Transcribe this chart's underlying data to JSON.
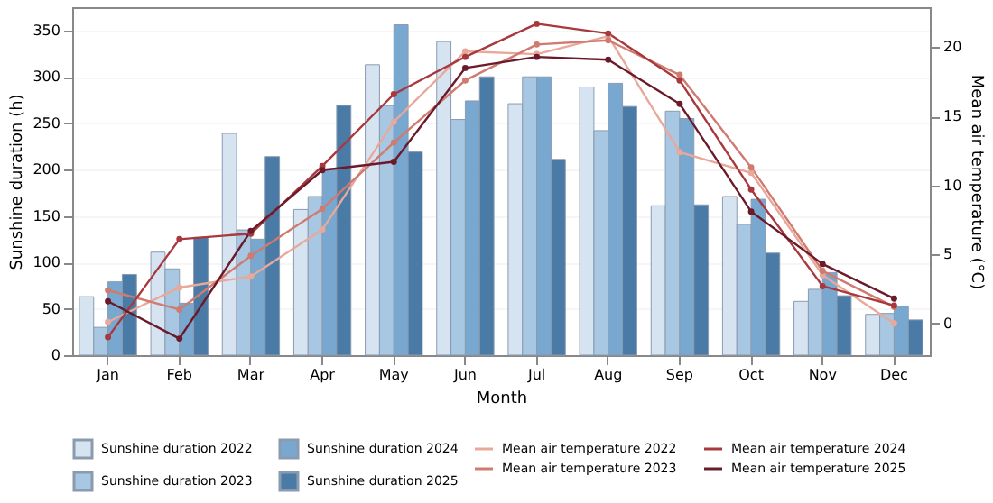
{
  "chart_data": {
    "type": "bar",
    "xlabel": "Month",
    "ylabel": "Sunshine duration (h)",
    "y2label": "Mean air temperature (°C)",
    "categories": [
      "Jan",
      "Feb",
      "Mar",
      "Apr",
      "May",
      "Jun",
      "Jul",
      "Aug",
      "Sep",
      "Oct",
      "Nov",
      "Dec"
    ],
    "series": [
      {
        "name": "Sunshine duration 2022",
        "color": "#d6e4f2",
        "values": [
          63,
          111,
          239,
          157,
          313,
          338,
          271,
          289,
          161,
          171,
          58,
          44
        ]
      },
      {
        "name": "Sunshine duration 2023",
        "color": "#a7c7e2",
        "values": [
          30,
          93,
          135,
          171,
          269,
          254,
          300,
          242,
          263,
          141,
          71,
          45
        ]
      },
      {
        "name": "Sunshine duration 2024",
        "color": "#78a8d0",
        "values": [
          79,
          56,
          125,
          201,
          356,
          274,
          300,
          293,
          255,
          168,
          89,
          53
        ]
      },
      {
        "name": "Sunshine duration 2025",
        "color": "#4a7ba7",
        "values": [
          87,
          127,
          214,
          269,
          219,
          300,
          211,
          268,
          162,
          110,
          64,
          38
        ]
      },
      {
        "name": "Mean air temperature 2022",
        "type": "line",
        "axis": "y2",
        "color": "#e8a89a",
        "values": [
          0.1,
          2.6,
          3.4,
          6.8,
          14.6,
          19.7,
          19.5,
          20.8,
          12.4,
          10.9,
          3.5,
          0.0
        ]
      },
      {
        "name": "Mean air temperature 2023",
        "type": "line",
        "axis": "y2",
        "color": "#d07a70",
        "values": [
          2.4,
          1.0,
          4.9,
          8.3,
          13.1,
          17.6,
          20.2,
          20.5,
          18.0,
          11.3,
          3.8,
          1.2
        ]
      },
      {
        "name": "Mean air temperature 2024",
        "type": "line",
        "axis": "y2",
        "color": "#a8383d",
        "values": [
          -1.0,
          6.1,
          6.5,
          11.4,
          16.6,
          19.3,
          21.7,
          21.0,
          17.6,
          9.7,
          2.7,
          1.3
        ]
      },
      {
        "name": "Mean air temperature 2025",
        "type": "line",
        "axis": "y2",
        "color": "#6b1a2a",
        "values": [
          1.6,
          -1.1,
          6.7,
          11.1,
          11.7,
          18.5,
          19.3,
          19.1,
          15.9,
          8.1,
          4.3,
          1.8
        ]
      }
    ],
    "ylim": [
      0,
      375
    ],
    "yticks": [
      0,
      50,
      100,
      150,
      200,
      250,
      300,
      350
    ],
    "y2lim": [
      -2.3,
      22.9
    ],
    "y2ticks": [
      0,
      5,
      10,
      15,
      20
    ],
    "grid": "y",
    "legend": "bottom",
    "marker": "circle",
    "line_style": "solid"
  }
}
